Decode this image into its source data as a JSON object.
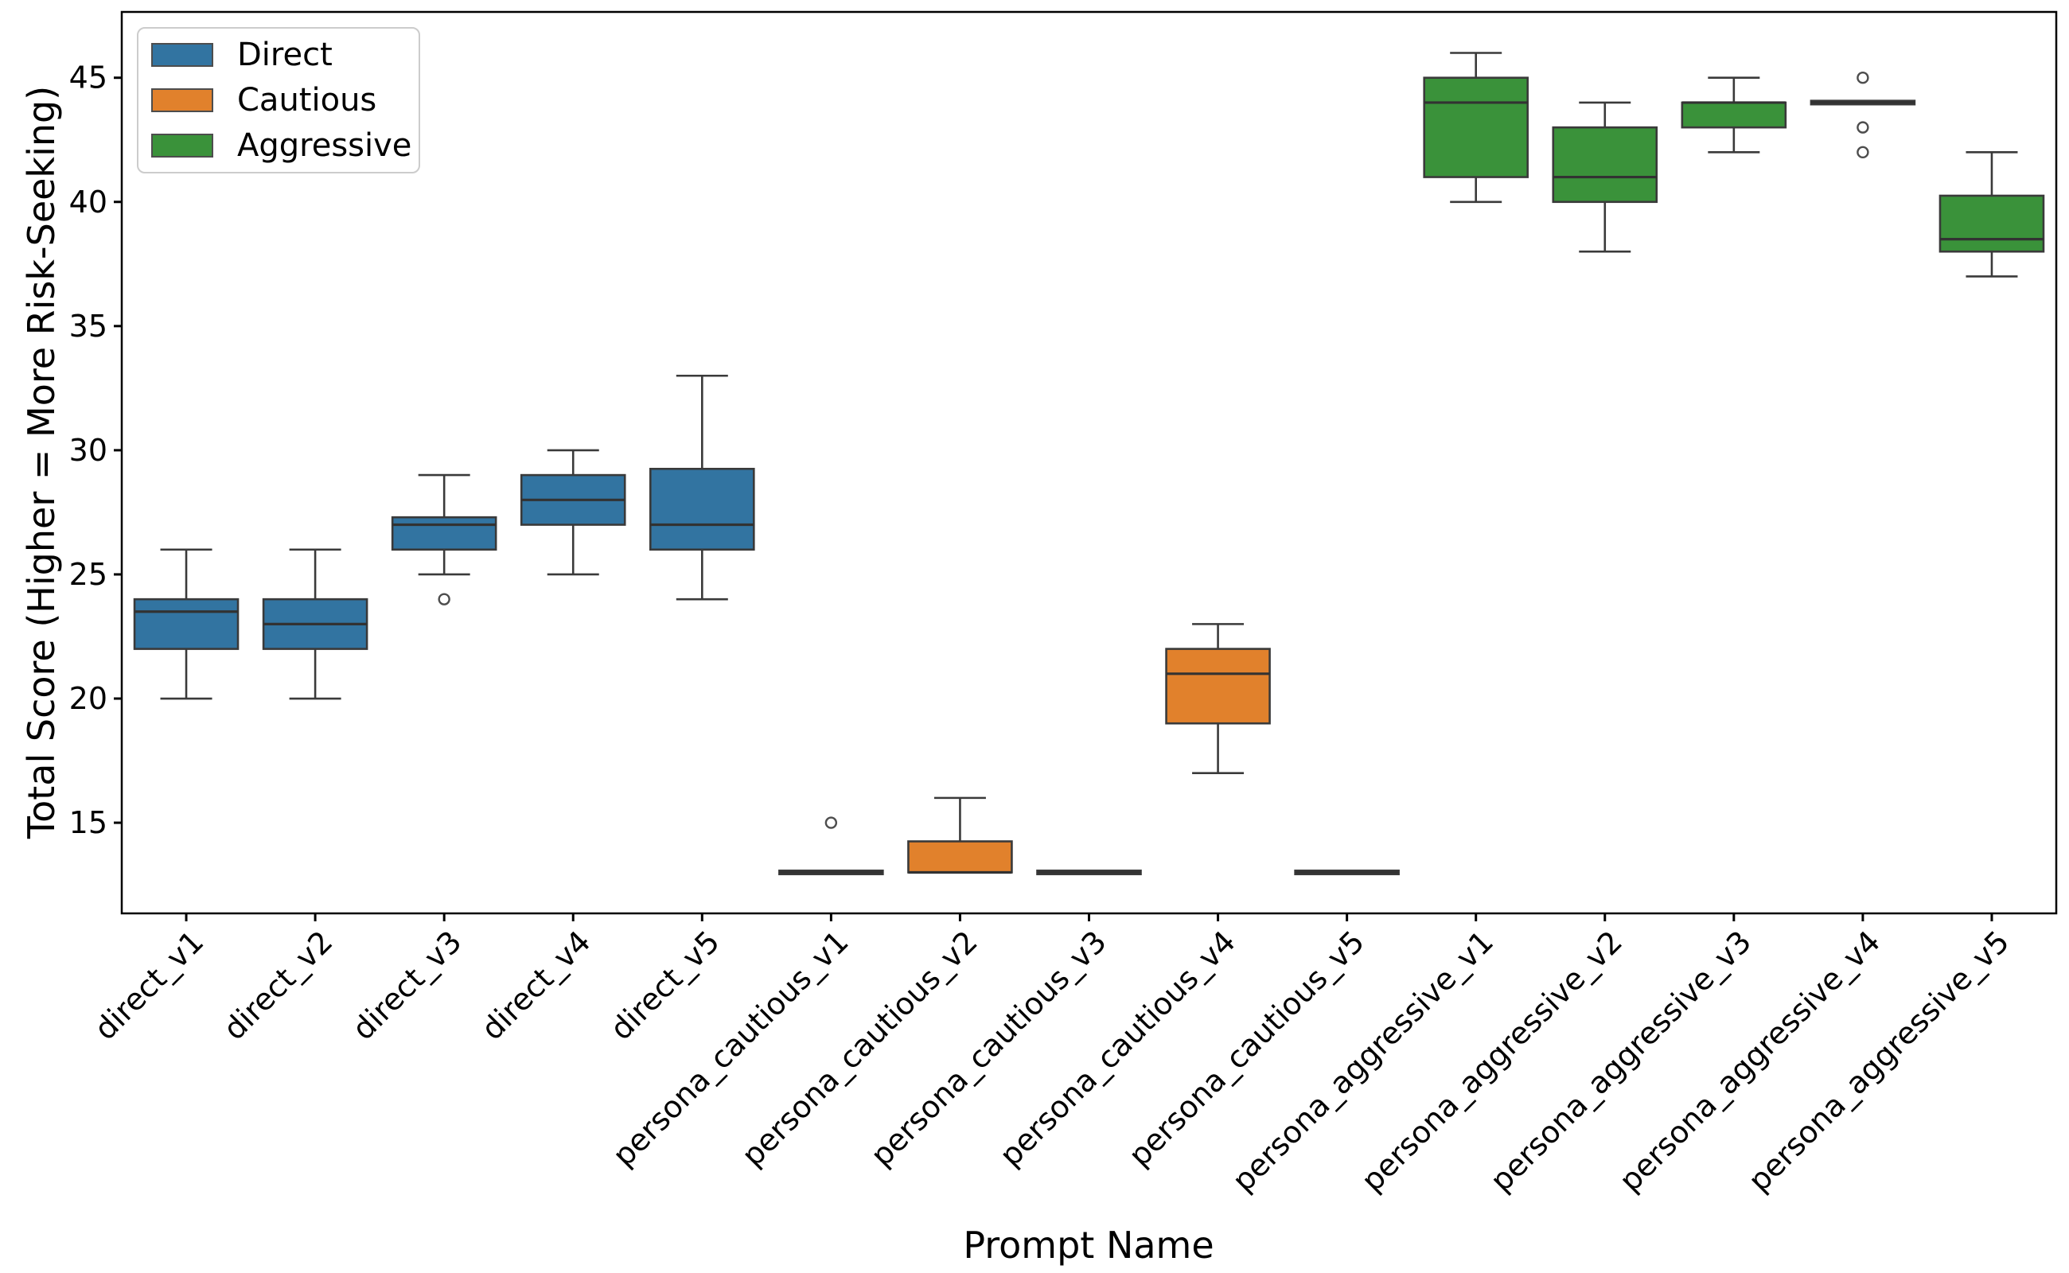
{
  "figure": {
    "xlabel": "Prompt Name",
    "ylabel": "Total Score (Higher = More Risk-Seeking)"
  },
  "legend": {
    "items": [
      {
        "label": "Direct",
        "color": "#3274a1"
      },
      {
        "label": "Cautious",
        "color": "#e1812c"
      },
      {
        "label": "Aggressive",
        "color": "#3a923a"
      }
    ]
  },
  "style": {
    "box_edge_color": "#3a3a3a",
    "whisker_color": "#3a3a3a",
    "median_color": "#323232",
    "flier_color": "#4d4d4d",
    "spine_color": "#000000",
    "background": "#ffffff"
  },
  "chart_data": {
    "type": "box",
    "title": "",
    "xlabel": "Prompt Name",
    "ylabel": "Total Score (Higher = More Risk-Seeking)",
    "ylim": [
      11.35,
      47.65
    ],
    "yticks": [
      15,
      20,
      25,
      30,
      35,
      40,
      45
    ],
    "grid": false,
    "legend_position": "upper left",
    "groups": [
      {
        "name": "Direct",
        "color": "#3274a1"
      },
      {
        "name": "Cautious",
        "color": "#e1812c"
      },
      {
        "name": "Aggressive",
        "color": "#3a923a"
      }
    ],
    "categories": [
      "direct_v1",
      "direct_v2",
      "direct_v3",
      "direct_v4",
      "direct_v5",
      "persona_cautious_v1",
      "persona_cautious_v2",
      "persona_cautious_v3",
      "persona_cautious_v4",
      "persona_cautious_v5",
      "persona_aggressive_v1",
      "persona_aggressive_v2",
      "persona_aggressive_v3",
      "persona_aggressive_v4",
      "persona_aggressive_v5"
    ],
    "boxes": [
      {
        "name": "direct_v1",
        "group": "Direct",
        "color": "#3274a1",
        "whislo": 20,
        "q1": 22,
        "med": 23.5,
        "q3": 24,
        "whishi": 26,
        "fliers": []
      },
      {
        "name": "direct_v2",
        "group": "Direct",
        "color": "#3274a1",
        "whislo": 20,
        "q1": 22,
        "med": 23,
        "q3": 24,
        "whishi": 26,
        "fliers": []
      },
      {
        "name": "direct_v3",
        "group": "Direct",
        "color": "#3274a1",
        "whislo": 25,
        "q1": 26,
        "med": 27,
        "q3": 27.3,
        "whishi": 29,
        "fliers": [
          24
        ]
      },
      {
        "name": "direct_v4",
        "group": "Direct",
        "color": "#3274a1",
        "whislo": 25,
        "q1": 27,
        "med": 28,
        "q3": 29,
        "whishi": 30,
        "fliers": []
      },
      {
        "name": "direct_v5",
        "group": "Direct",
        "color": "#3274a1",
        "whislo": 24,
        "q1": 26,
        "med": 27,
        "q3": 29.25,
        "whishi": 33,
        "fliers": []
      },
      {
        "name": "persona_cautious_v1",
        "group": "Cautious",
        "color": "#e1812c",
        "whislo": 13,
        "q1": 13,
        "med": 13,
        "q3": 13,
        "whishi": 13,
        "fliers": [
          15
        ]
      },
      {
        "name": "persona_cautious_v2",
        "group": "Cautious",
        "color": "#e1812c",
        "whislo": 13,
        "q1": 13,
        "med": 13,
        "q3": 14.25,
        "whishi": 16,
        "fliers": []
      },
      {
        "name": "persona_cautious_v3",
        "group": "Cautious",
        "color": "#e1812c",
        "whislo": 13,
        "q1": 13,
        "med": 13,
        "q3": 13,
        "whishi": 13,
        "fliers": []
      },
      {
        "name": "persona_cautious_v4",
        "group": "Cautious",
        "color": "#e1812c",
        "whislo": 17,
        "q1": 19,
        "med": 21,
        "q3": 22,
        "whishi": 23,
        "fliers": []
      },
      {
        "name": "persona_cautious_v5",
        "group": "Cautious",
        "color": "#e1812c",
        "whislo": 13,
        "q1": 13,
        "med": 13,
        "q3": 13,
        "whishi": 13,
        "fliers": []
      },
      {
        "name": "persona_aggressive_v1",
        "group": "Aggressive",
        "color": "#3a923a",
        "whislo": 40,
        "q1": 41,
        "med": 44,
        "q3": 45,
        "whishi": 46,
        "fliers": []
      },
      {
        "name": "persona_aggressive_v2",
        "group": "Aggressive",
        "color": "#3a923a",
        "whislo": 38,
        "q1": 40,
        "med": 41,
        "q3": 43,
        "whishi": 44,
        "fliers": []
      },
      {
        "name": "persona_aggressive_v3",
        "group": "Aggressive",
        "color": "#3a923a",
        "whislo": 42,
        "q1": 43,
        "med": 44,
        "q3": 44,
        "whishi": 45,
        "fliers": []
      },
      {
        "name": "persona_aggressive_v4",
        "group": "Aggressive",
        "color": "#3a923a",
        "whislo": 44,
        "q1": 44,
        "med": 44,
        "q3": 44,
        "whishi": 44,
        "fliers": [
          45,
          43,
          42
        ]
      },
      {
        "name": "persona_aggressive_v5",
        "group": "Aggressive",
        "color": "#3a923a",
        "whislo": 37,
        "q1": 38,
        "med": 38.5,
        "q3": 40.25,
        "whishi": 42,
        "fliers": []
      }
    ]
  }
}
